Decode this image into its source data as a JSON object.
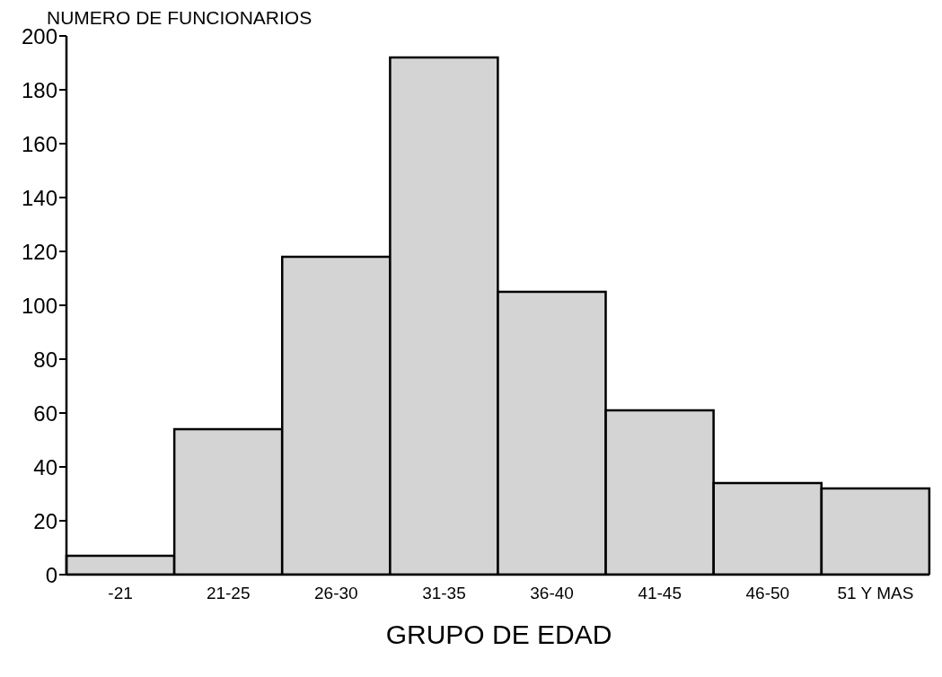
{
  "chart_data": {
    "type": "bar",
    "xlabel": "GRUPO DE EDAD",
    "ylabel": "NUMERO DE FUNCIONARIOS",
    "categories": [
      "-21",
      "21-25",
      "26-30",
      "31-35",
      "36-40",
      "41-45",
      "46-50",
      "51 Y MAS"
    ],
    "values": [
      7,
      54,
      118,
      192,
      105,
      61,
      34,
      32
    ],
    "color": "#d4d4d4",
    "ylim": [
      0,
      200
    ],
    "yticks": [
      0,
      20,
      40,
      60,
      80,
      100,
      120,
      140,
      160,
      180,
      200
    ],
    "grid": false
  }
}
